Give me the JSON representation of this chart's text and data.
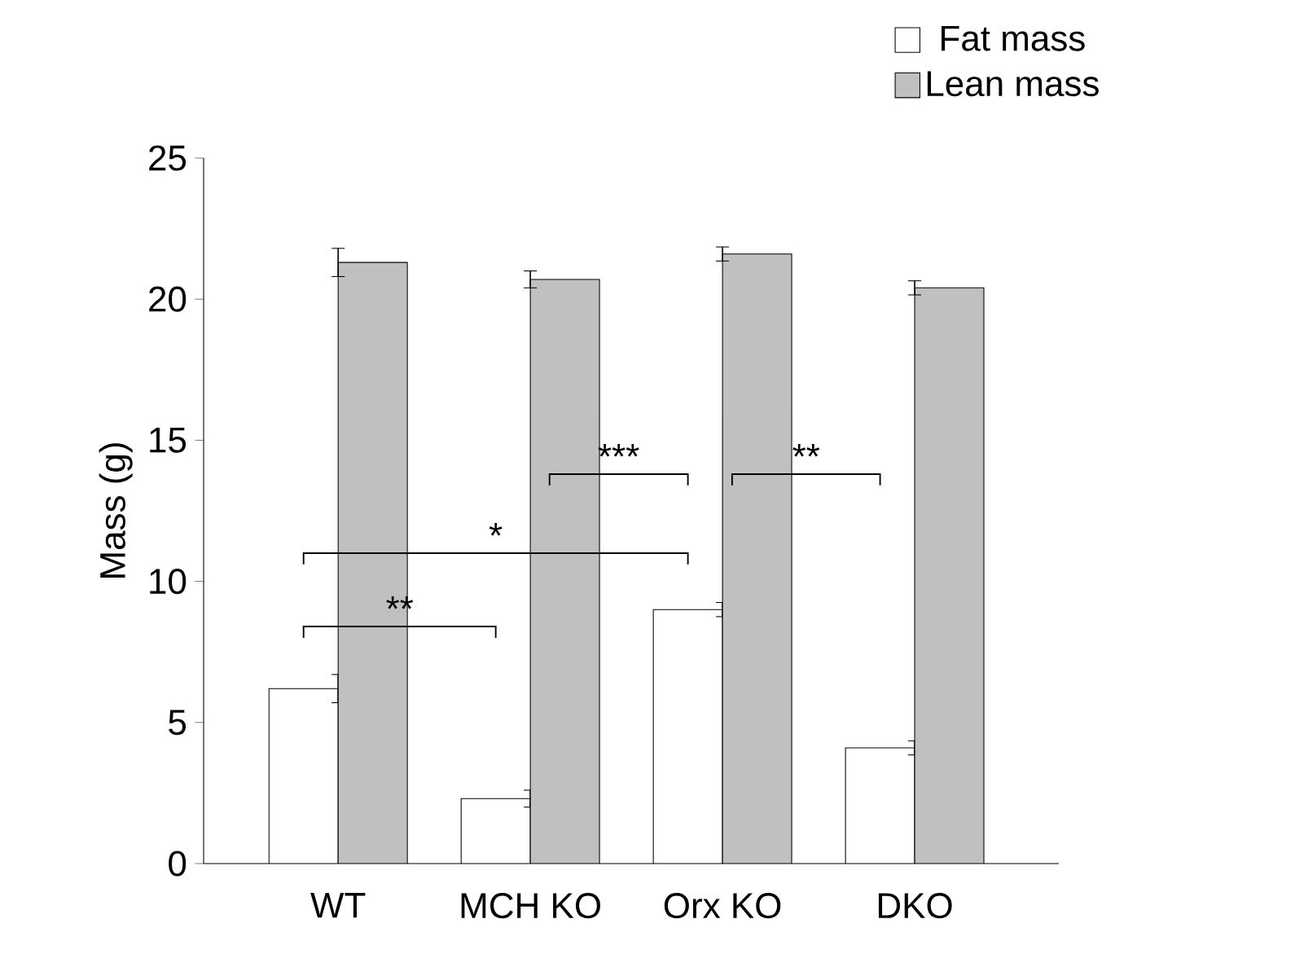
{
  "chart_data": {
    "type": "bar",
    "ylabel": "Mass (g)",
    "categories": [
      "WT",
      "MCH KO",
      "Orx KO",
      "DKO"
    ],
    "series": [
      {
        "name": "Fat mass",
        "color": "#ffffff",
        "values": [
          6.2,
          2.3,
          9.0,
          4.1
        ],
        "errors": [
          0.5,
          0.3,
          0.25,
          0.25
        ]
      },
      {
        "name": "Lean mass",
        "color": "#c0c0c0",
        "values": [
          21.3,
          20.7,
          21.6,
          20.4
        ],
        "errors": [
          0.5,
          0.3,
          0.25,
          0.25
        ]
      }
    ],
    "ylim": [
      0,
      25
    ],
    "yticks": [
      0,
      5,
      10,
      15,
      20,
      25
    ],
    "grid": false,
    "legend": "top right",
    "annotations": [
      "**",
      "*",
      "***",
      "**"
    ]
  }
}
